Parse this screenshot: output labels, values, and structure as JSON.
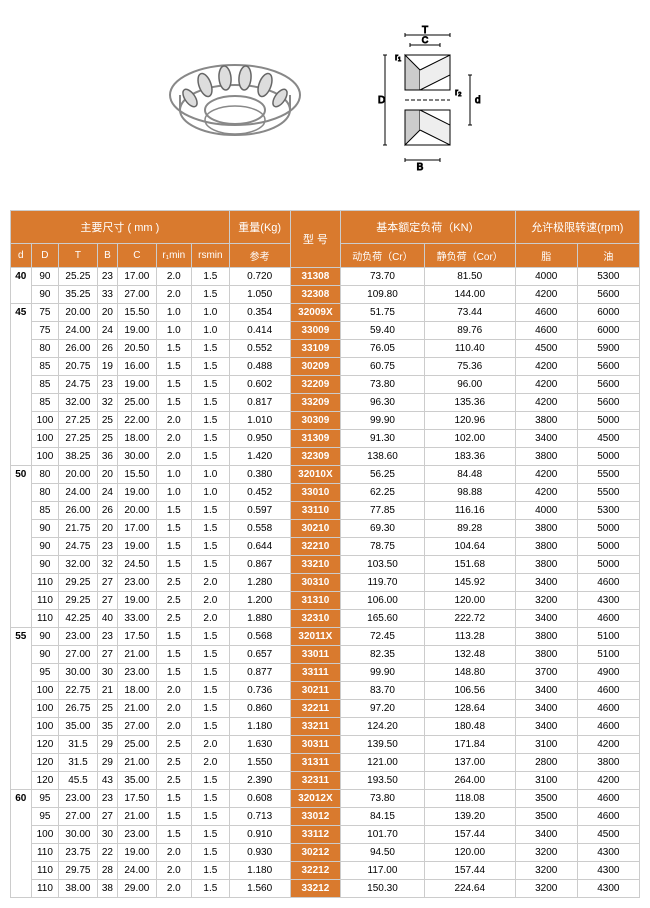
{
  "headers": {
    "main_dim": "主要尺寸 ( mm )",
    "weight": "重量(Kg)",
    "weight_sub": "参考",
    "model": "型  号",
    "load": "基本额定负荷（KN）",
    "speed": "允许极限转速(rpm)",
    "d": "d",
    "D": "D",
    "T": "T",
    "B": "B",
    "C": "C",
    "r1min": "r₁min",
    "rsmin": "rsmin",
    "dynamic": "动负荷（Cr）",
    "static": "静负荷（Cor）",
    "grease": "脂",
    "oil": "油"
  },
  "diagram_labels": {
    "T": "T",
    "C": "C",
    "r1": "r₁",
    "r2": "r₂",
    "D": "D",
    "B": "B",
    "d": "d"
  },
  "groups": [
    {
      "d": "40",
      "rows": [
        {
          "D": "90",
          "T": "25.25",
          "B": "23",
          "C": "17.00",
          "r1": "2.0",
          "rs": "1.5",
          "w": "0.720",
          "m": "31308",
          "cr": "73.70",
          "cor": "81.50",
          "g": "4000",
          "o": "5300"
        },
        {
          "D": "90",
          "T": "35.25",
          "B": "33",
          "C": "27.00",
          "r1": "2.0",
          "rs": "1.5",
          "w": "1.050",
          "m": "32308",
          "cr": "109.80",
          "cor": "144.00",
          "g": "4200",
          "o": "5600"
        }
      ]
    },
    {
      "d": "45",
      "rows": [
        {
          "D": "75",
          "T": "20.00",
          "B": "20",
          "C": "15.50",
          "r1": "1.0",
          "rs": "1.0",
          "w": "0.354",
          "m": "32009X",
          "cr": "51.75",
          "cor": "73.44",
          "g": "4600",
          "o": "6000"
        },
        {
          "D": "75",
          "T": "24.00",
          "B": "24",
          "C": "19.00",
          "r1": "1.0",
          "rs": "1.0",
          "w": "0.414",
          "m": "33009",
          "cr": "59.40",
          "cor": "89.76",
          "g": "4600",
          "o": "6000"
        },
        {
          "D": "80",
          "T": "26.00",
          "B": "26",
          "C": "20.50",
          "r1": "1.5",
          "rs": "1.5",
          "w": "0.552",
          "m": "33109",
          "cr": "76.05",
          "cor": "110.40",
          "g": "4500",
          "o": "5900"
        },
        {
          "D": "85",
          "T": "20.75",
          "B": "19",
          "C": "16.00",
          "r1": "1.5",
          "rs": "1.5",
          "w": "0.488",
          "m": "30209",
          "cr": "60.75",
          "cor": "75.36",
          "g": "4200",
          "o": "5600"
        },
        {
          "D": "85",
          "T": "24.75",
          "B": "23",
          "C": "19.00",
          "r1": "1.5",
          "rs": "1.5",
          "w": "0.602",
          "m": "32209",
          "cr": "73.80",
          "cor": "96.00",
          "g": "4200",
          "o": "5600"
        },
        {
          "D": "85",
          "T": "32.00",
          "B": "32",
          "C": "25.00",
          "r1": "1.5",
          "rs": "1.5",
          "w": "0.817",
          "m": "33209",
          "cr": "96.30",
          "cor": "135.36",
          "g": "4200",
          "o": "5600"
        },
        {
          "D": "100",
          "T": "27.25",
          "B": "25",
          "C": "22.00",
          "r1": "2.0",
          "rs": "1.5",
          "w": "1.010",
          "m": "30309",
          "cr": "99.90",
          "cor": "120.96",
          "g": "3800",
          "o": "5000"
        },
        {
          "D": "100",
          "T": "27.25",
          "B": "25",
          "C": "18.00",
          "r1": "2.0",
          "rs": "1.5",
          "w": "0.950",
          "m": "31309",
          "cr": "91.30",
          "cor": "102.00",
          "g": "3400",
          "o": "4500"
        },
        {
          "D": "100",
          "T": "38.25",
          "B": "36",
          "C": "30.00",
          "r1": "2.0",
          "rs": "1.5",
          "w": "1.420",
          "m": "32309",
          "cr": "138.60",
          "cor": "183.36",
          "g": "3800",
          "o": "5000"
        }
      ]
    },
    {
      "d": "50",
      "rows": [
        {
          "D": "80",
          "T": "20.00",
          "B": "20",
          "C": "15.50",
          "r1": "1.0",
          "rs": "1.0",
          "w": "0.380",
          "m": "32010X",
          "cr": "56.25",
          "cor": "84.48",
          "g": "4200",
          "o": "5500"
        },
        {
          "D": "80",
          "T": "24.00",
          "B": "24",
          "C": "19.00",
          "r1": "1.0",
          "rs": "1.0",
          "w": "0.452",
          "m": "33010",
          "cr": "62.25",
          "cor": "98.88",
          "g": "4200",
          "o": "5500"
        },
        {
          "D": "85",
          "T": "26.00",
          "B": "26",
          "C": "20.00",
          "r1": "1.5",
          "rs": "1.5",
          "w": "0.597",
          "m": "33110",
          "cr": "77.85",
          "cor": "116.16",
          "g": "4000",
          "o": "5300"
        },
        {
          "D": "90",
          "T": "21.75",
          "B": "20",
          "C": "17.00",
          "r1": "1.5",
          "rs": "1.5",
          "w": "0.558",
          "m": "30210",
          "cr": "69.30",
          "cor": "89.28",
          "g": "3800",
          "o": "5000"
        },
        {
          "D": "90",
          "T": "24.75",
          "B": "23",
          "C": "19.00",
          "r1": "1.5",
          "rs": "1.5",
          "w": "0.644",
          "m": "32210",
          "cr": "78.75",
          "cor": "104.64",
          "g": "3800",
          "o": "5000"
        },
        {
          "D": "90",
          "T": "32.00",
          "B": "32",
          "C": "24.50",
          "r1": "1.5",
          "rs": "1.5",
          "w": "0.867",
          "m": "33210",
          "cr": "103.50",
          "cor": "151.68",
          "g": "3800",
          "o": "5000"
        },
        {
          "D": "110",
          "T": "29.25",
          "B": "27",
          "C": "23.00",
          "r1": "2.5",
          "rs": "2.0",
          "w": "1.280",
          "m": "30310",
          "cr": "119.70",
          "cor": "145.92",
          "g": "3400",
          "o": "4600"
        },
        {
          "D": "110",
          "T": "29.25",
          "B": "27",
          "C": "19.00",
          "r1": "2.5",
          "rs": "2.0",
          "w": "1.200",
          "m": "31310",
          "cr": "106.00",
          "cor": "120.00",
          "g": "3200",
          "o": "4300"
        },
        {
          "D": "110",
          "T": "42.25",
          "B": "40",
          "C": "33.00",
          "r1": "2.5",
          "rs": "2.0",
          "w": "1.880",
          "m": "32310",
          "cr": "165.60",
          "cor": "222.72",
          "g": "3400",
          "o": "4600"
        }
      ]
    },
    {
      "d": "55",
      "rows": [
        {
          "D": "90",
          "T": "23.00",
          "B": "23",
          "C": "17.50",
          "r1": "1.5",
          "rs": "1.5",
          "w": "0.568",
          "m": "32011X",
          "cr": "72.45",
          "cor": "113.28",
          "g": "3800",
          "o": "5100"
        },
        {
          "D": "90",
          "T": "27.00",
          "B": "27",
          "C": "21.00",
          "r1": "1.5",
          "rs": "1.5",
          "w": "0.657",
          "m": "33011",
          "cr": "82.35",
          "cor": "132.48",
          "g": "3800",
          "o": "5100"
        },
        {
          "D": "95",
          "T": "30.00",
          "B": "30",
          "C": "23.00",
          "r1": "1.5",
          "rs": "1.5",
          "w": "0.877",
          "m": "33111",
          "cr": "99.90",
          "cor": "148.80",
          "g": "3700",
          "o": "4900"
        },
        {
          "D": "100",
          "T": "22.75",
          "B": "21",
          "C": "18.00",
          "r1": "2.0",
          "rs": "1.5",
          "w": "0.736",
          "m": "30211",
          "cr": "83.70",
          "cor": "106.56",
          "g": "3400",
          "o": "4600"
        },
        {
          "D": "100",
          "T": "26.75",
          "B": "25",
          "C": "21.00",
          "r1": "2.0",
          "rs": "1.5",
          "w": "0.860",
          "m": "32211",
          "cr": "97.20",
          "cor": "128.64",
          "g": "3400",
          "o": "4600"
        },
        {
          "D": "100",
          "T": "35.00",
          "B": "35",
          "C": "27.00",
          "r1": "2.0",
          "rs": "1.5",
          "w": "1.180",
          "m": "33211",
          "cr": "124.20",
          "cor": "180.48",
          "g": "3400",
          "o": "4600"
        },
        {
          "D": "120",
          "T": "31.5",
          "B": "29",
          "C": "25.00",
          "r1": "2.5",
          "rs": "2.0",
          "w": "1.630",
          "m": "30311",
          "cr": "139.50",
          "cor": "171.84",
          "g": "3100",
          "o": "4200"
        },
        {
          "D": "120",
          "T": "31.5",
          "B": "29",
          "C": "21.00",
          "r1": "2.5",
          "rs": "2.0",
          "w": "1.550",
          "m": "31311",
          "cr": "121.00",
          "cor": "137.00",
          "g": "2800",
          "o": "3800"
        },
        {
          "D": "120",
          "T": "45.5",
          "B": "43",
          "C": "35.00",
          "r1": "2.5",
          "rs": "1.5",
          "w": "2.390",
          "m": "32311",
          "cr": "193.50",
          "cor": "264.00",
          "g": "3100",
          "o": "4200"
        }
      ]
    },
    {
      "d": "60",
      "rows": [
        {
          "D": "95",
          "T": "23.00",
          "B": "23",
          "C": "17.50",
          "r1": "1.5",
          "rs": "1.5",
          "w": "0.608",
          "m": "32012X",
          "cr": "73.80",
          "cor": "118.08",
          "g": "3500",
          "o": "4600"
        },
        {
          "D": "95",
          "T": "27.00",
          "B": "27",
          "C": "21.00",
          "r1": "1.5",
          "rs": "1.5",
          "w": "0.713",
          "m": "33012",
          "cr": "84.15",
          "cor": "139.20",
          "g": "3500",
          "o": "4600"
        },
        {
          "D": "100",
          "T": "30.00",
          "B": "30",
          "C": "23.00",
          "r1": "1.5",
          "rs": "1.5",
          "w": "0.910",
          "m": "33112",
          "cr": "101.70",
          "cor": "157.44",
          "g": "3400",
          "o": "4500"
        },
        {
          "D": "110",
          "T": "23.75",
          "B": "22",
          "C": "19.00",
          "r1": "2.0",
          "rs": "1.5",
          "w": "0.930",
          "m": "30212",
          "cr": "94.50",
          "cor": "120.00",
          "g": "3200",
          "o": "4300"
        },
        {
          "D": "110",
          "T": "29.75",
          "B": "28",
          "C": "24.00",
          "r1": "2.0",
          "rs": "1.5",
          "w": "1.180",
          "m": "32212",
          "cr": "117.00",
          "cor": "157.44",
          "g": "3200",
          "o": "4300"
        },
        {
          "D": "110",
          "T": "38.00",
          "B": "38",
          "C": "29.00",
          "r1": "2.0",
          "rs": "1.5",
          "w": "1.560",
          "m": "33212",
          "cr": "150.30",
          "cor": "224.64",
          "g": "3200",
          "o": "4300"
        }
      ]
    }
  ]
}
